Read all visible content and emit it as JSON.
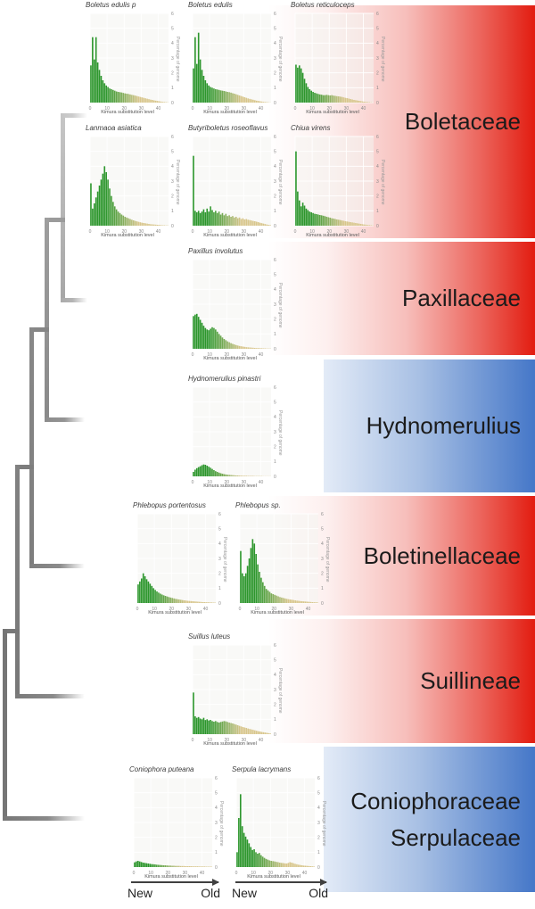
{
  "bands": [
    {
      "label": "Boletaceae",
      "color_scheme": "red"
    },
    {
      "label": "Paxillaceae",
      "color_scheme": "red"
    },
    {
      "label": "Hydnomerulius",
      "color_scheme": "blue"
    },
    {
      "label": "Boletinellaceae",
      "color_scheme": "red"
    },
    {
      "label": "Suillineae",
      "color_scheme": "red"
    },
    {
      "label": "Coniophoraceae",
      "label_line2": "Serpulaceae",
      "color_scheme": "blue"
    }
  ],
  "colors": {
    "band_red": "#e41c10",
    "band_blue": "#4577c8",
    "bar_green": "#2e962e",
    "bar_tan": "#d7c58c",
    "tree_gray_light": "#b7b7b7",
    "tree_gray_dark": "#767676"
  },
  "tree": {
    "tip_clades": [
      "Boletaceae",
      "Paxillaceae",
      "Hydnomerulius",
      "Boletinellaceae",
      "Suillineae",
      "Coniophoraceae/Serpulaceae"
    ]
  },
  "time_axis": {
    "new_label": "New",
    "old_label": "Old"
  },
  "chart_data": [
    {
      "type": "bar",
      "title": "Boletus edulis p",
      "xlabel": "Kimura substitution level",
      "ylabel": "Percentage of genome",
      "xlim": [
        0,
        46
      ],
      "ylim": [
        0,
        6
      ],
      "xticks": [
        0,
        10,
        20,
        30,
        40
      ],
      "yticks": [
        0,
        1,
        2,
        3,
        4,
        5,
        6
      ],
      "values": [
        2.5,
        4.4,
        2.9,
        4.4,
        2.7,
        2.2,
        1.8,
        1.5,
        1.3,
        1.15,
        1.05,
        0.95,
        0.9,
        0.85,
        0.8,
        0.75,
        0.72,
        0.7,
        0.68,
        0.65,
        0.62,
        0.6,
        0.58,
        0.55,
        0.52,
        0.5,
        0.47,
        0.44,
        0.41,
        0.38,
        0.35,
        0.32,
        0.29,
        0.26,
        0.23,
        0.2,
        0.18,
        0.15,
        0.13,
        0.11,
        0.09,
        0.07,
        0.05,
        0.04,
        0.03,
        0.02
      ]
    },
    {
      "type": "bar",
      "title": "Boletus edulis",
      "xlabel": "Kimura substitution level",
      "ylabel": "Percentage of genome",
      "xlim": [
        0,
        46
      ],
      "ylim": [
        0,
        6
      ],
      "xticks": [
        0,
        10,
        20,
        30,
        40
      ],
      "yticks": [
        0,
        1,
        2,
        3,
        4,
        5,
        6
      ],
      "values": [
        2.3,
        4.4,
        2.6,
        4.7,
        2.9,
        2.2,
        1.8,
        1.5,
        1.3,
        1.15,
        1.05,
        1.0,
        0.95,
        0.9,
        0.88,
        0.85,
        0.82,
        0.8,
        0.78,
        0.75,
        0.72,
        0.7,
        0.67,
        0.63,
        0.6,
        0.56,
        0.52,
        0.48,
        0.44,
        0.4,
        0.36,
        0.32,
        0.28,
        0.25,
        0.22,
        0.19,
        0.16,
        0.13,
        0.11,
        0.09,
        0.07,
        0.05,
        0.04,
        0.03,
        0.02,
        0.01
      ]
    },
    {
      "type": "bar",
      "title": "Boletus reticuloceps",
      "xlabel": "Kimura substitution level",
      "ylabel": "Percentage of genome",
      "xlim": [
        0,
        46
      ],
      "ylim": [
        0,
        6
      ],
      "xticks": [
        0,
        10,
        20,
        30,
        40
      ],
      "yticks": [
        0,
        1,
        2,
        3,
        4,
        5,
        6
      ],
      "values": [
        2.55,
        2.35,
        2.5,
        2.3,
        2.0,
        1.6,
        1.3,
        1.05,
        0.9,
        0.8,
        0.72,
        0.66,
        0.62,
        0.58,
        0.55,
        0.53,
        0.5,
        0.5,
        0.52,
        0.5,
        0.48,
        0.5,
        0.47,
        0.45,
        0.43,
        0.42,
        0.4,
        0.38,
        0.35,
        0.32,
        0.3,
        0.27,
        0.24,
        0.21,
        0.18,
        0.16,
        0.14,
        0.12,
        0.1,
        0.08,
        0.06,
        0.05,
        0.04,
        0.03,
        0.02,
        0.01
      ]
    },
    {
      "type": "bar",
      "title": "Lanmaoa asiatica",
      "xlabel": "Kimura substitution level",
      "ylabel": "Percentage of genome",
      "xlim": [
        0,
        46
      ],
      "ylim": [
        0,
        6
      ],
      "xticks": [
        0,
        10,
        20,
        30,
        40
      ],
      "yticks": [
        0,
        1,
        2,
        3,
        4,
        5,
        6
      ],
      "values": [
        2.85,
        1.15,
        1.5,
        1.9,
        2.3,
        2.7,
        3.1,
        3.5,
        4.0,
        3.6,
        3.1,
        2.5,
        2.0,
        1.6,
        1.3,
        1.1,
        0.95,
        0.85,
        0.75,
        0.68,
        0.6,
        0.55,
        0.5,
        0.45,
        0.4,
        0.36,
        0.32,
        0.29,
        0.26,
        0.23,
        0.2,
        0.18,
        0.16,
        0.14,
        0.12,
        0.1,
        0.09,
        0.08,
        0.07,
        0.06,
        0.05,
        0.04,
        0.03,
        0.03,
        0.02,
        0.02
      ]
    },
    {
      "type": "bar",
      "title": "Butyriboletus roseoflavus",
      "xlabel": "Kimura substitution level",
      "ylabel": "Percentage of genome",
      "xlim": [
        0,
        46
      ],
      "ylim": [
        0,
        6
      ],
      "xticks": [
        0,
        10,
        20,
        30,
        40
      ],
      "yticks": [
        0,
        1,
        2,
        3,
        4,
        5,
        6
      ],
      "values": [
        4.7,
        1.0,
        0.9,
        1.0,
        0.85,
        0.95,
        1.1,
        0.9,
        1.15,
        0.95,
        1.3,
        1.05,
        0.9,
        1.0,
        0.85,
        0.95,
        0.75,
        0.85,
        0.7,
        0.8,
        0.65,
        0.7,
        0.6,
        0.65,
        0.55,
        0.6,
        0.5,
        0.55,
        0.45,
        0.5,
        0.42,
        0.45,
        0.4,
        0.38,
        0.35,
        0.32,
        0.3,
        0.27,
        0.24,
        0.2,
        0.17,
        0.14,
        0.11,
        0.08,
        0.06,
        0.04
      ]
    },
    {
      "type": "bar",
      "title": "Chiua virens",
      "xlabel": "Kimura substitution level",
      "ylabel": "Percentage of genome",
      "xlim": [
        0,
        46
      ],
      "ylim": [
        0,
        6
      ],
      "xticks": [
        0,
        10,
        20,
        30,
        40
      ],
      "yticks": [
        0,
        1,
        2,
        3,
        4,
        5,
        6
      ],
      "values": [
        5.0,
        2.3,
        1.7,
        1.3,
        1.55,
        1.35,
        1.15,
        1.05,
        0.95,
        0.9,
        0.85,
        0.8,
        0.78,
        0.75,
        0.72,
        0.7,
        0.67,
        0.64,
        0.6,
        0.57,
        0.54,
        0.5,
        0.48,
        0.45,
        0.42,
        0.4,
        0.38,
        0.35,
        0.33,
        0.3,
        0.28,
        0.26,
        0.24,
        0.22,
        0.2,
        0.18,
        0.16,
        0.14,
        0.12,
        0.1,
        0.08,
        0.07,
        0.05,
        0.04,
        0.03,
        0.02
      ]
    },
    {
      "type": "bar",
      "title": "Paxillus involutus",
      "xlabel": "Kimura substitution level",
      "ylabel": "Percentage of genome",
      "xlim": [
        0,
        46
      ],
      "ylim": [
        0,
        6
      ],
      "xticks": [
        0,
        10,
        20,
        30,
        40
      ],
      "yticks": [
        0,
        1,
        2,
        3,
        4,
        5,
        6
      ],
      "values": [
        2.2,
        2.3,
        2.35,
        2.15,
        1.95,
        1.75,
        1.55,
        1.4,
        1.3,
        1.25,
        1.35,
        1.45,
        1.4,
        1.3,
        1.15,
        1.0,
        0.88,
        0.76,
        0.66,
        0.58,
        0.5,
        0.44,
        0.38,
        0.33,
        0.29,
        0.25,
        0.22,
        0.19,
        0.17,
        0.15,
        0.13,
        0.11,
        0.1,
        0.09,
        0.08,
        0.07,
        0.06,
        0.05,
        0.05,
        0.04,
        0.04,
        0.03,
        0.03,
        0.02,
        0.02,
        0.02
      ]
    },
    {
      "type": "bar",
      "title": "Hydnomerulius pinastri",
      "xlabel": "Kimura substitution level",
      "ylabel": "Percentage of genome",
      "xlim": [
        0,
        46
      ],
      "ylim": [
        0,
        6
      ],
      "xticks": [
        0,
        10,
        20,
        30,
        40
      ],
      "yticks": [
        0,
        1,
        2,
        3,
        4,
        5,
        6
      ],
      "values": [
        0.3,
        0.45,
        0.55,
        0.62,
        0.68,
        0.75,
        0.8,
        0.78,
        0.72,
        0.65,
        0.58,
        0.5,
        0.42,
        0.35,
        0.3,
        0.25,
        0.21,
        0.18,
        0.15,
        0.13,
        0.11,
        0.1,
        0.09,
        0.08,
        0.07,
        0.06,
        0.06,
        0.05,
        0.05,
        0.04,
        0.04,
        0.04,
        0.03,
        0.03,
        0.03,
        0.03,
        0.02,
        0.02,
        0.02,
        0.02,
        0.02,
        0.01,
        0.01,
        0.01,
        0.01,
        0.01
      ]
    },
    {
      "type": "bar",
      "title": "Phlebopus portentosus",
      "xlabel": "Kimura substitution level",
      "ylabel": "Percentage of genome",
      "xlim": [
        0,
        46
      ],
      "ylim": [
        0,
        6
      ],
      "xticks": [
        0,
        10,
        20,
        30,
        40
      ],
      "yticks": [
        0,
        1,
        2,
        3,
        4,
        5,
        6
      ],
      "values": [
        1.25,
        1.45,
        1.65,
        2.0,
        1.8,
        1.6,
        1.45,
        1.3,
        1.15,
        1.0,
        0.88,
        0.78,
        0.7,
        0.63,
        0.57,
        0.52,
        0.48,
        0.44,
        0.4,
        0.37,
        0.34,
        0.31,
        0.28,
        0.26,
        0.24,
        0.22,
        0.2,
        0.18,
        0.17,
        0.15,
        0.14,
        0.13,
        0.12,
        0.11,
        0.1,
        0.09,
        0.08,
        0.07,
        0.06,
        0.06,
        0.05,
        0.05,
        0.04,
        0.04,
        0.03,
        0.03
      ]
    },
    {
      "type": "bar",
      "title": "Phlebopus sp.",
      "xlabel": "Kimura substitution level",
      "ylabel": "Percentage of genome",
      "xlim": [
        0,
        46
      ],
      "ylim": [
        0,
        6
      ],
      "xticks": [
        0,
        10,
        20,
        30,
        40
      ],
      "yticks": [
        0,
        1,
        2,
        3,
        4,
        5,
        6
      ],
      "values": [
        3.5,
        2.0,
        1.8,
        2.0,
        2.5,
        3.0,
        3.7,
        4.3,
        4.0,
        3.3,
        2.6,
        2.1,
        1.7,
        1.4,
        1.15,
        0.95,
        0.85,
        0.75,
        0.65,
        0.6,
        0.55,
        0.5,
        0.45,
        0.4,
        0.37,
        0.34,
        0.31,
        0.28,
        0.26,
        0.24,
        0.22,
        0.2,
        0.18,
        0.16,
        0.15,
        0.13,
        0.12,
        0.11,
        0.1,
        0.09,
        0.08,
        0.07,
        0.06,
        0.05,
        0.05,
        0.04
      ]
    },
    {
      "type": "bar",
      "title": "Suillus luteus",
      "xlabel": "Kimura substitution level",
      "ylabel": "Percentage of genome",
      "xlim": [
        0,
        46
      ],
      "ylim": [
        0,
        6
      ],
      "xticks": [
        0,
        10,
        20,
        30,
        40
      ],
      "yticks": [
        0,
        1,
        2,
        3,
        4,
        5,
        6
      ],
      "values": [
        2.8,
        1.2,
        1.1,
        1.15,
        1.05,
        1.0,
        1.1,
        0.95,
        1.0,
        0.92,
        0.96,
        0.88,
        0.84,
        0.88,
        0.82,
        0.78,
        0.82,
        0.85,
        0.88,
        0.86,
        0.82,
        0.78,
        0.75,
        0.72,
        0.68,
        0.64,
        0.6,
        0.56,
        0.52,
        0.48,
        0.45,
        0.42,
        0.38,
        0.35,
        0.32,
        0.29,
        0.26,
        0.23,
        0.2,
        0.18,
        0.15,
        0.13,
        0.11,
        0.09,
        0.07,
        0.05
      ]
    },
    {
      "type": "bar",
      "title": "Coniophora puteana",
      "xlabel": "Kimura substitution level",
      "ylabel": "Percentage of genome",
      "xlim": [
        0,
        46
      ],
      "ylim": [
        0,
        6
      ],
      "xticks": [
        0,
        10,
        20,
        30,
        40
      ],
      "yticks": [
        0,
        1,
        2,
        3,
        4,
        5,
        6
      ],
      "values": [
        0.32,
        0.38,
        0.42,
        0.38,
        0.34,
        0.3,
        0.28,
        0.26,
        0.24,
        0.22,
        0.2,
        0.19,
        0.18,
        0.16,
        0.15,
        0.14,
        0.13,
        0.12,
        0.12,
        0.11,
        0.1,
        0.1,
        0.09,
        0.09,
        0.08,
        0.08,
        0.08,
        0.07,
        0.07,
        0.07,
        0.06,
        0.06,
        0.06,
        0.06,
        0.05,
        0.05,
        0.05,
        0.05,
        0.04,
        0.04,
        0.04,
        0.04,
        0.03,
        0.03,
        0.03,
        0.03
      ]
    },
    {
      "type": "bar",
      "title": "Serpula lacrymans",
      "xlabel": "Kimura substitution level",
      "ylabel": "Percentage of genome",
      "xlim": [
        0,
        46
      ],
      "ylim": [
        0,
        6
      ],
      "xticks": [
        0,
        10,
        20,
        30,
        40
      ],
      "yticks": [
        0,
        1,
        2,
        3,
        4,
        5,
        6
      ],
      "values": [
        1.0,
        3.3,
        4.9,
        2.75,
        2.3,
        2.05,
        1.85,
        1.6,
        1.35,
        1.15,
        1.2,
        1.0,
        0.9,
        0.95,
        0.8,
        0.7,
        0.62,
        0.55,
        0.5,
        0.45,
        0.42,
        0.4,
        0.38,
        0.35,
        0.33,
        0.3,
        0.28,
        0.27,
        0.25,
        0.24,
        0.28,
        0.33,
        0.3,
        0.26,
        0.22,
        0.19,
        0.16,
        0.14,
        0.12,
        0.1,
        0.09,
        0.08,
        0.07,
        0.06,
        0.05,
        0.04
      ]
    }
  ]
}
